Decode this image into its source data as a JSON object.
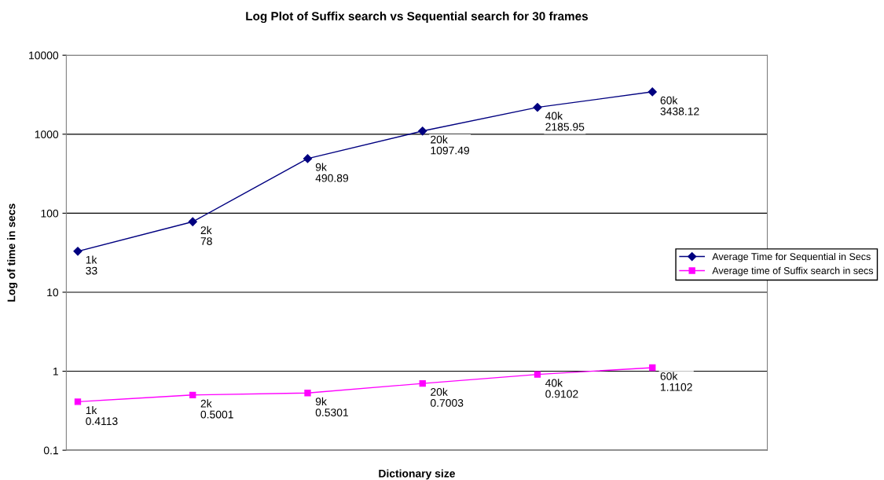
{
  "chart_data": {
    "type": "line",
    "title": "Log Plot of Suffix search vs Sequential search for 30 frames",
    "xlabel": "Dictionary size",
    "ylabel": "Log of time in secs",
    "categories": [
      null,
      null,
      null,
      null,
      null,
      null
    ],
    "log": "y",
    "ylim": [
      0.1,
      10000
    ],
    "yticks": [
      {
        "value": 0.1,
        "label": "0.1"
      },
      1,
      10,
      100,
      1000,
      10000
    ],
    "grid": "y",
    "legend": "right",
    "series": [
      {
        "name": "Average Time for Sequential in Secs",
        "color": "#000080",
        "marker": "diamond",
        "values": [
          33,
          78,
          490.89,
          1097.49,
          2185.95,
          3438.12
        ],
        "value_labels": [
          "1k\n33",
          "2k\n78",
          "9k\n490.89",
          "20k\n1097.49",
          "40k\n2185.95",
          "60k\n3438.12"
        ]
      },
      {
        "name": "Average time of Suffix search in secs",
        "color": "#ff00ff",
        "marker": "square",
        "values": [
          0.4113,
          0.5001,
          0.5301,
          0.7003,
          0.9102,
          1.1102
        ],
        "value_labels": [
          "1k\n0.4113",
          "2k\n0.5001",
          "9k\n0.5301",
          "20k\n0.7003",
          "40k\n0.9102",
          "60k\n1.1102"
        ]
      }
    ]
  }
}
